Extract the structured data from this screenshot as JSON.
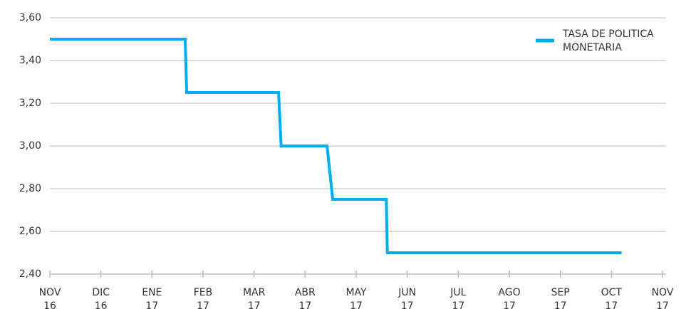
{
  "chart_data": {
    "type": "line",
    "x": [
      0,
      2.65,
      2.68,
      4.48,
      4.53,
      5.43,
      5.54,
      6.59,
      6.61,
      11.2
    ],
    "series": [
      {
        "name": "TASA DE POLITICA MONETARIA",
        "color": "#00aeef",
        "values": [
          3.5,
          3.5,
          3.25,
          3.25,
          3.0,
          3.0,
          2.75,
          2.75,
          2.5,
          2.5
        ]
      }
    ],
    "xlim": [
      0,
      12
    ],
    "xticks": [
      {
        "value": 0,
        "label": "NOV 16"
      },
      {
        "value": 1,
        "label": "DIC 16"
      },
      {
        "value": 2,
        "label": "ENE 17"
      },
      {
        "value": 3,
        "label": "FEB 17"
      },
      {
        "value": 4,
        "label": "MAR 17"
      },
      {
        "value": 5,
        "label": "ABR 17"
      },
      {
        "value": 6,
        "label": "MAY 17"
      },
      {
        "value": 7,
        "label": "JUN 17"
      },
      {
        "value": 8,
        "label": "JUL 17"
      },
      {
        "value": 9,
        "label": "AGO 17"
      },
      {
        "value": 10,
        "label": "SEP 17"
      },
      {
        "value": 11,
        "label": "OCT 17"
      },
      {
        "value": 12,
        "label": "NOV 17"
      }
    ],
    "ylim": [
      2.4,
      3.6
    ],
    "yticks": [
      {
        "value": 2.4,
        "label": "2,40"
      },
      {
        "value": 2.6,
        "label": "2,60"
      },
      {
        "value": 2.8,
        "label": "2,80"
      },
      {
        "value": 3.0,
        "label": "3,00"
      },
      {
        "value": 3.2,
        "label": "3,20"
      },
      {
        "value": 3.4,
        "label": "3,40"
      },
      {
        "value": 3.6,
        "label": "3,60"
      }
    ],
    "grid": true,
    "legend": "top-right"
  }
}
